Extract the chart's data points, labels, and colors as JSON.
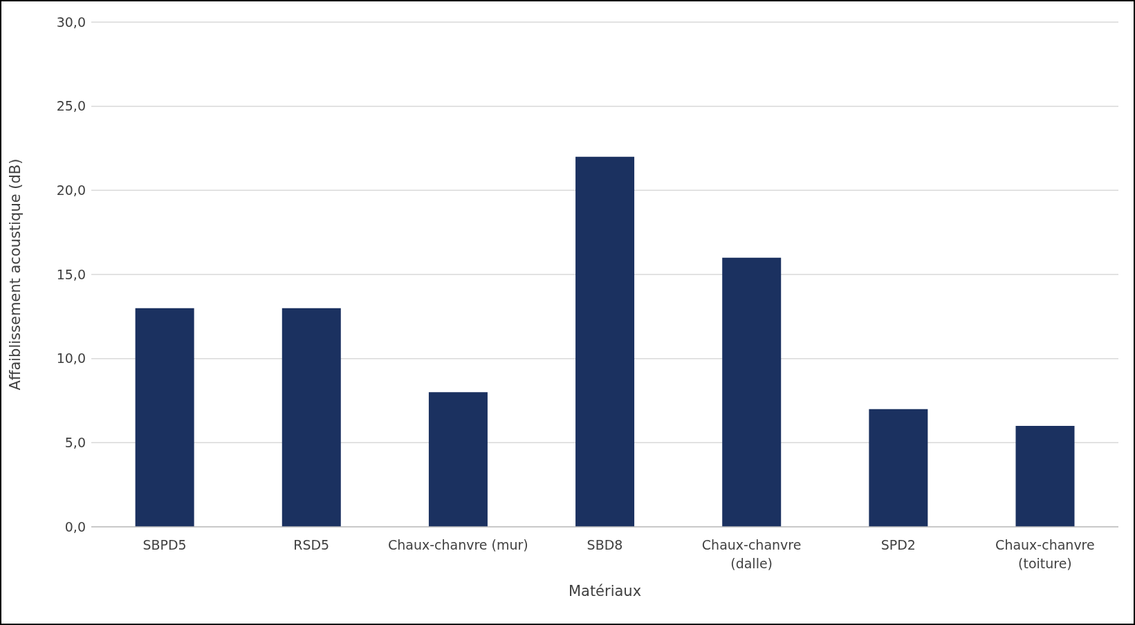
{
  "chart_data": {
    "type": "bar",
    "xlabel": "Matériaux",
    "ylabel": "Affaiblissement acoustique (dB)",
    "categories": [
      "SBPD5",
      "RSD5",
      "Chaux-chanvre (mur)",
      "SBD8",
      "Chaux-chanvre (dalle)",
      "SPD2",
      "Chaux-chanvre (toiture)"
    ],
    "values": [
      13,
      13,
      8,
      22,
      16,
      7,
      6
    ],
    "color": "#1b3160",
    "ylim": [
      0,
      30
    ],
    "yticks": [
      {
        "value": 0,
        "label": "0,0"
      },
      {
        "value": 5,
        "label": "5,0"
      },
      {
        "value": 10,
        "label": "10,0"
      },
      {
        "value": 15,
        "label": "15,0"
      },
      {
        "value": 20,
        "label": "20,0"
      },
      {
        "value": 25,
        "label": "25,0"
      },
      {
        "value": 30,
        "label": "30,0"
      }
    ],
    "grid": "y",
    "legend": false
  }
}
